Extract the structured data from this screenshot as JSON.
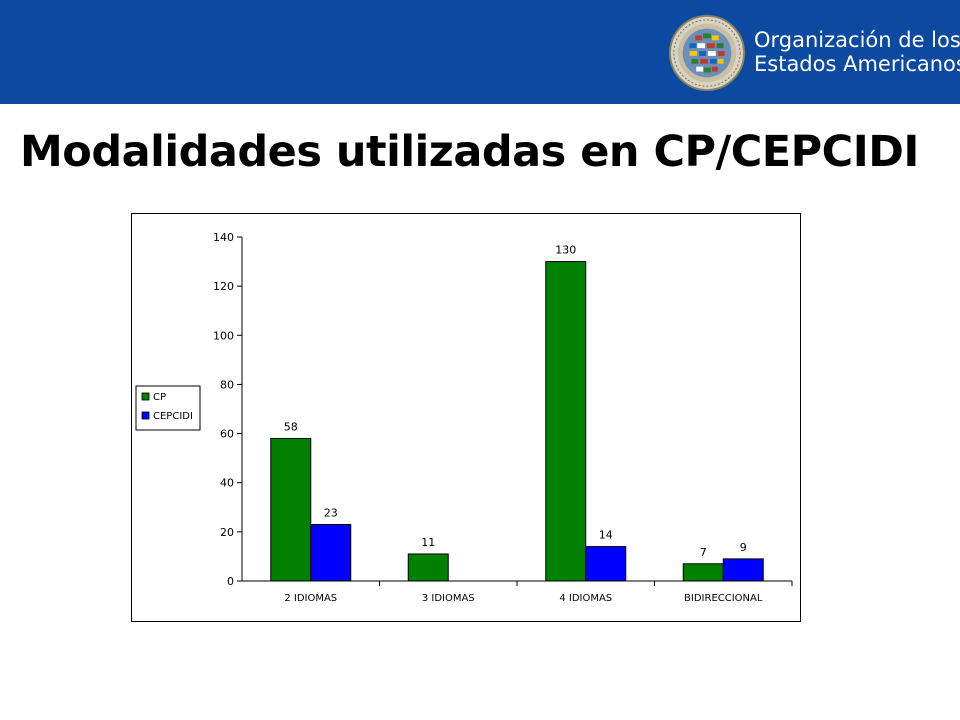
{
  "header": {
    "org_line1": "Organización de los",
    "org_line2": "Estados Americanos",
    "logo_icon": "oas-seal-icon",
    "colors": {
      "bar": "#0b4aa0",
      "text": "#ffffff"
    }
  },
  "slide": {
    "title": "Modalidades utilizadas en CP/CEPCIDI"
  },
  "chart_data": {
    "type": "bar",
    "categories": [
      "2 IDIOMAS",
      "3 IDIOMAS",
      "4 IDIOMAS",
      "BIDIRECCIONAL"
    ],
    "series": [
      {
        "name": "CP",
        "values": [
          58,
          11,
          130,
          7
        ],
        "color": "#008000"
      },
      {
        "name": "CEPCIDI",
        "values": [
          23,
          null,
          14,
          9
        ],
        "color": "#0000ff"
      }
    ],
    "ylim": [
      0,
      140
    ],
    "yticks": [
      0,
      20,
      40,
      60,
      80,
      100,
      120,
      140
    ],
    "grid": false,
    "legend": "left",
    "data_labels": true
  }
}
